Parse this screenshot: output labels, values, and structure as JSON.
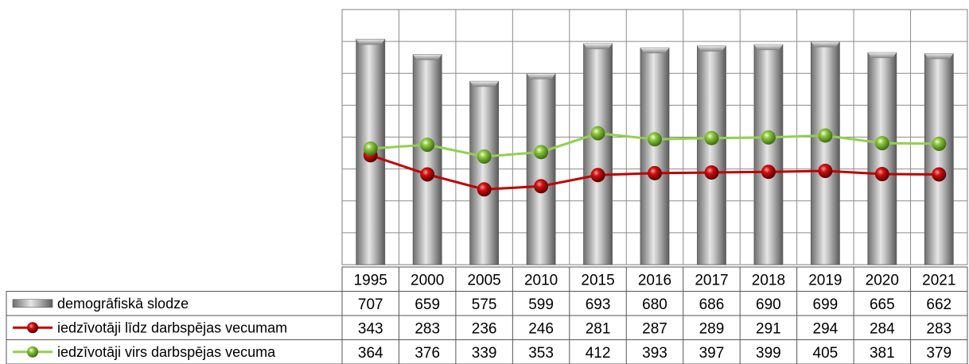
{
  "chart_data": {
    "type": "bar",
    "categories": [
      "1995",
      "2000",
      "2005",
      "2010",
      "2015",
      "2016",
      "2017",
      "2018",
      "2019",
      "2020",
      "2021"
    ],
    "series": [
      {
        "name": "demogrāfiskā slodze",
        "type": "bar",
        "color": "#9a9a9a",
        "values": [
          707,
          659,
          575,
          599,
          693,
          680,
          686,
          690,
          699,
          665,
          662
        ]
      },
      {
        "name": "iedzīvotāji līdz darbspējas vecumam",
        "type": "line",
        "color": "#c00000",
        "values": [
          343,
          283,
          236,
          246,
          281,
          287,
          289,
          291,
          294,
          284,
          283
        ]
      },
      {
        "name": "iedzīvotāji virs darbspējas vecuma",
        "type": "line",
        "color": "#92d050",
        "values": [
          364,
          376,
          339,
          353,
          412,
          393,
          397,
          399,
          405,
          381,
          379
        ]
      }
    ],
    "ylim": [
      0,
      800
    ],
    "grid": true,
    "legend": "data-table",
    "title": "",
    "xlabel": "",
    "ylabel": ""
  }
}
